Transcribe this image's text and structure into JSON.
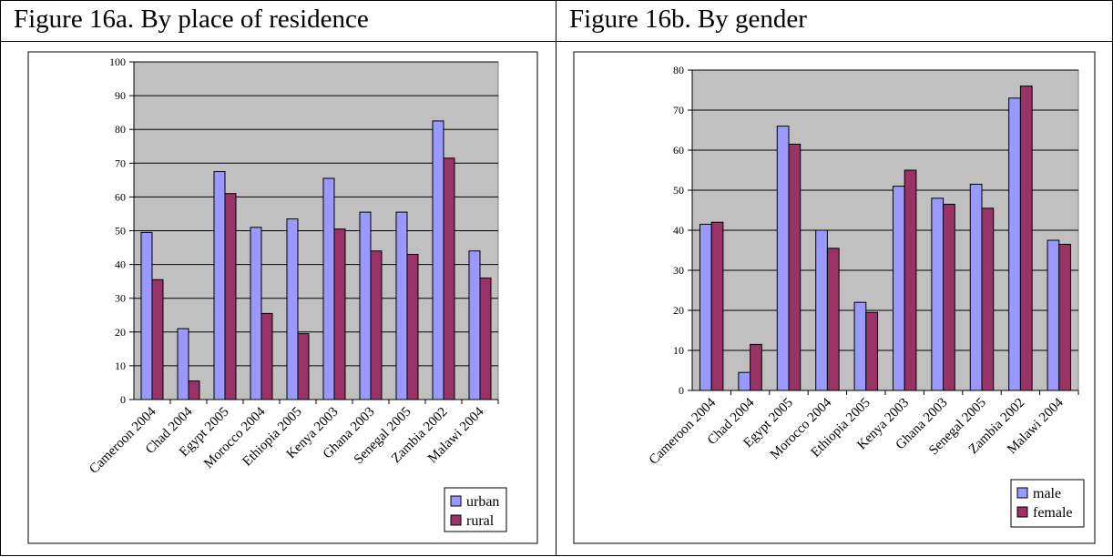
{
  "figures": [
    {
      "caption": "Figure 16a. By place of residence",
      "chart_data": {
        "type": "bar",
        "title": "",
        "xlabel": "",
        "ylabel": "",
        "ylim": [
          0,
          100
        ],
        "yticks": [
          0,
          10,
          20,
          30,
          40,
          50,
          60,
          70,
          80,
          90,
          100
        ],
        "grid": true,
        "legend": "bottom-right",
        "categories": [
          "Cameroon 2004",
          "Chad 2004",
          "Egypt 2005",
          "Morocco 2004",
          "Ethiopia 2005",
          "Kenya 2003",
          "Ghana 2003",
          "Senegal 2005",
          "Zambia 2002",
          "Malawi 2004"
        ],
        "series": [
          {
            "name": "urban",
            "color": "#9999ff",
            "values": [
              49.5,
              21,
              67.5,
              51,
              53.5,
              65.5,
              55.5,
              55.5,
              82.5,
              44
            ]
          },
          {
            "name": "rural",
            "color": "#993366",
            "values": [
              35.5,
              5.5,
              61,
              25.5,
              19.5,
              50.5,
              44,
              43,
              71.5,
              36
            ]
          }
        ]
      }
    },
    {
      "caption": "Figure 16b. By gender",
      "chart_data": {
        "type": "bar",
        "title": "",
        "xlabel": "",
        "ylabel": "",
        "ylim": [
          0,
          80
        ],
        "yticks": [
          0,
          10,
          20,
          30,
          40,
          50,
          60,
          70,
          80
        ],
        "grid": true,
        "legend": "bottom-right",
        "categories": [
          "Cameroon 2004",
          "Chad 2004",
          "Egypt 2005",
          "Morocco 2004",
          "Ethiopia 2005",
          "Kenya 2003",
          "Ghana 2003",
          "Senegal 2005",
          "Zambia 2002",
          "Malawi 2004"
        ],
        "series": [
          {
            "name": "male",
            "color": "#9999ff",
            "values": [
              41.5,
              4.5,
              66,
              40,
              22,
              51,
              48,
              51.5,
              73,
              37.5
            ]
          },
          {
            "name": "female",
            "color": "#993366",
            "values": [
              42,
              11.5,
              61.5,
              35.5,
              19.5,
              55,
              46.5,
              45.5,
              76,
              36.5
            ]
          }
        ]
      }
    }
  ]
}
